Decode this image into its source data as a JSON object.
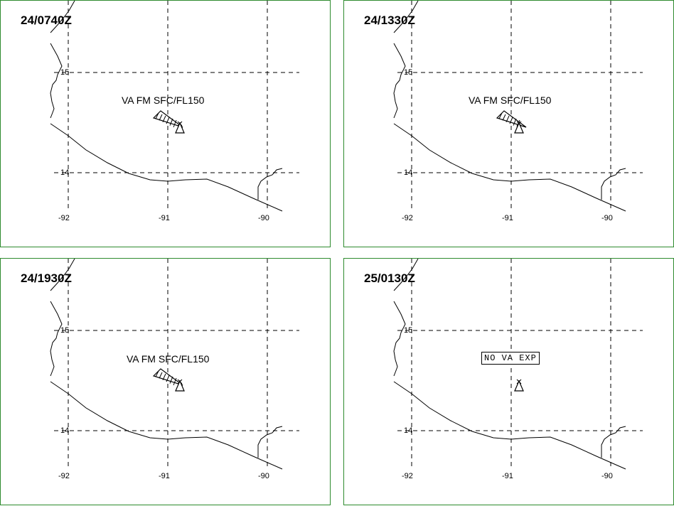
{
  "colors": {
    "border": "#2e8b2e",
    "lines": "#000000"
  },
  "axes": {
    "lat_labels": [
      "15",
      "14"
    ],
    "lon_labels": [
      "-92",
      "-91",
      "-90"
    ]
  },
  "panels": [
    {
      "time": "24/0740Z",
      "va_text": "VA FM SFC/FL150",
      "status": ""
    },
    {
      "time": "24/1330Z",
      "va_text": "VA FM SFC/FL150",
      "status": ""
    },
    {
      "time": "24/1930Z",
      "va_text": "VA FM SFC/FL150",
      "status": ""
    },
    {
      "time": "25/0130Z",
      "va_text": "",
      "status": "NO VA EXP"
    }
  ],
  "icons": {
    "volcano": "volcano-triangle-icon"
  }
}
